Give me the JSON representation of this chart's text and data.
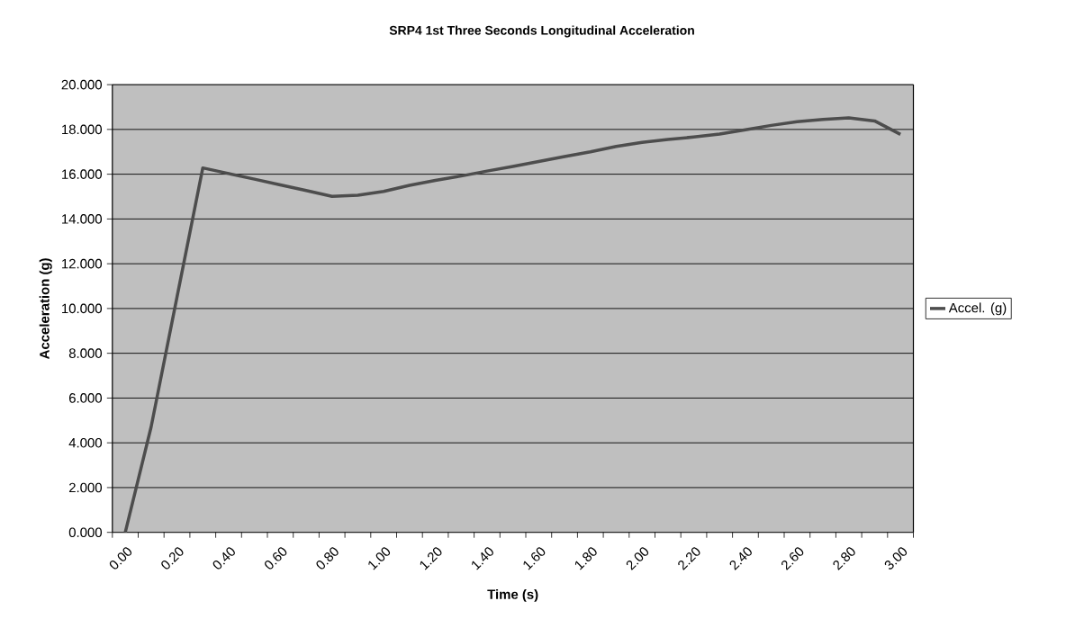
{
  "chart_data": {
    "type": "line",
    "title": "SRP4 1st Three Seconds Longitudinal Acceleration",
    "xlabel": "Time (s)",
    "ylabel": "Acceleration (g)",
    "categories": [
      "0.00",
      null,
      "0.20",
      null,
      "0.40",
      null,
      "0.60",
      null,
      "0.80",
      null,
      "1.00",
      null,
      "1.20",
      null,
      "1.40",
      null,
      "1.60",
      null,
      "1.80",
      null,
      "2.00",
      null,
      "2.20",
      null,
      "2.40",
      null,
      "2.60",
      null,
      "2.80",
      null,
      "3.00"
    ],
    "series": [
      {
        "name": "Accel. (g)",
        "color": "#4d4d4d",
        "values": [
          0.0,
          4.71,
          10.5,
          16.28,
          16.03,
          15.78,
          15.52,
          15.27,
          15.01,
          15.06,
          15.23,
          15.5,
          15.72,
          15.92,
          16.14,
          16.35,
          16.57,
          16.79,
          17.0,
          17.24,
          17.42,
          17.55,
          17.66,
          17.79,
          17.98,
          18.18,
          18.35,
          18.45,
          18.52,
          18.38,
          17.78
        ]
      }
    ],
    "ylim": [
      0,
      20
    ],
    "yticks": [
      {
        "value": 0,
        "label": "0.000"
      },
      {
        "value": 2,
        "label": "2.000"
      },
      {
        "value": 4,
        "label": "4.000"
      },
      {
        "value": 6,
        "label": "6.000"
      },
      {
        "value": 8,
        "label": "8.000"
      },
      {
        "value": 10,
        "label": "10.000"
      },
      {
        "value": 12,
        "label": "12.000"
      },
      {
        "value": 14,
        "label": "14.000"
      },
      {
        "value": 16,
        "label": "16.000"
      },
      {
        "value": 18,
        "label": "18.000"
      },
      {
        "value": 20,
        "label": "20.000"
      }
    ],
    "grid": "y",
    "legend": "right",
    "marker": "none",
    "line_style": "solid"
  }
}
